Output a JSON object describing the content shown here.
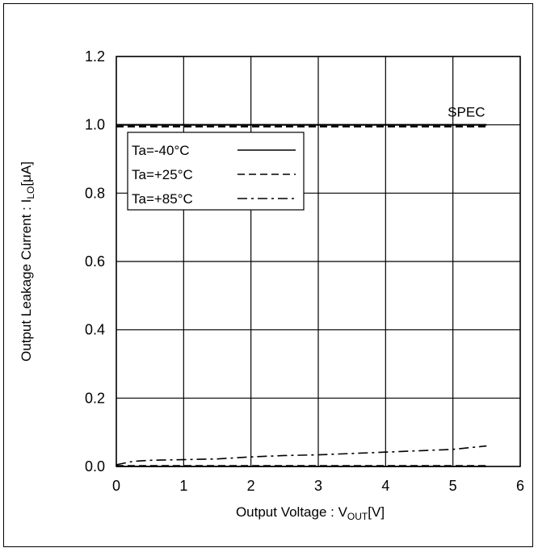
{
  "chart_data": {
    "type": "line",
    "xlabel_main": "Output Voltage : V",
    "xlabel_sub": "OUT",
    "xlabel_tail": "[V]",
    "ylabel_main": "Output Leakage Current : I",
    "ylabel_sub": "LO",
    "ylabel_tail": "[μA]",
    "xlim": [
      0,
      6
    ],
    "ylim": [
      0,
      1.2
    ],
    "x_ticks": [
      "0",
      "1",
      "2",
      "3",
      "4",
      "5",
      "6"
    ],
    "y_ticks": [
      "0.0",
      "0.2",
      "0.4",
      "0.6",
      "0.8",
      "1.0",
      "1.2"
    ],
    "grid": true,
    "legend_position": "upper-left",
    "annotation": {
      "text": "SPEC",
      "x": 5.2,
      "y": 1.0
    },
    "series": [
      {
        "name": "Ta=-40°C",
        "style": "solid",
        "x": [
          0,
          1,
          2,
          3,
          4,
          5,
          5.5
        ],
        "y": [
          0.0,
          0.0,
          0.0,
          0.0,
          0.0,
          0.0,
          0.0
        ]
      },
      {
        "name": "Ta=+25°C",
        "style": "dashed",
        "x": [
          0,
          1,
          2,
          3,
          4,
          5,
          5.5
        ],
        "y": [
          0.0,
          0.0,
          0.0,
          0.0,
          0.0,
          0.0,
          0.0
        ]
      },
      {
        "name": "Ta=+85°C",
        "style": "dashdot",
        "x": [
          0,
          0.25,
          0.5,
          1,
          1.5,
          2,
          2.5,
          3,
          3.5,
          4,
          4.5,
          5,
          5.5
        ],
        "y": [
          0.005,
          0.015,
          0.018,
          0.02,
          0.022,
          0.028,
          0.032,
          0.034,
          0.038,
          0.042,
          0.046,
          0.05,
          0.06
        ]
      }
    ],
    "spec_lines": [
      {
        "style": "solid",
        "y": 1.0,
        "x": [
          0,
          5.5
        ]
      },
      {
        "style": "dashed",
        "y": 0.995,
        "x": [
          0,
          5.5
        ]
      }
    ]
  }
}
